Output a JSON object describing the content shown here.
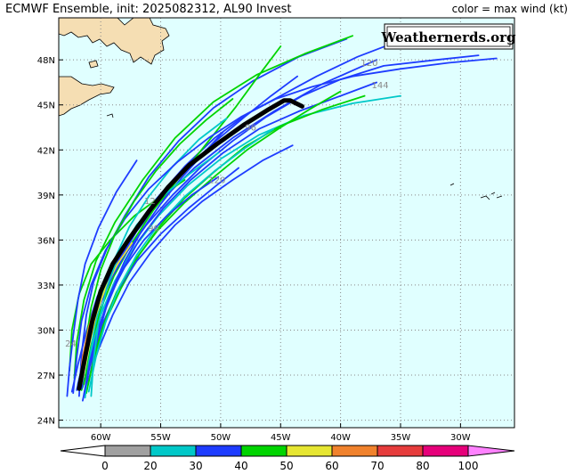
{
  "header": {
    "title": "ECMWF Ensemble, init: 2025082312, AL90 Invest",
    "legend_note": "color = max wind (kt)"
  },
  "watermark": "Weathernerds.org",
  "chart_data": {
    "type": "line",
    "xlim": [
      -63.5,
      -25.5
    ],
    "ylim": [
      23.5,
      50.8
    ],
    "x_ticks": [
      "60W",
      "55W",
      "50W",
      "45W",
      "40W",
      "35W",
      "30W"
    ],
    "x_tick_values": [
      -60,
      -55,
      -50,
      -45,
      -40,
      -35,
      -30
    ],
    "y_ticks": [
      "24N",
      "27N",
      "30N",
      "33N",
      "36N",
      "39N",
      "42N",
      "45N",
      "48N"
    ],
    "y_tick_values": [
      24,
      27,
      30,
      33,
      36,
      39,
      42,
      45,
      48
    ],
    "grid": true,
    "colorbar": {
      "labels": [
        "0",
        "20",
        "30",
        "40",
        "50",
        "60",
        "70",
        "80",
        "100"
      ],
      "colors": [
        "#a0a0a0",
        "#00c8c8",
        "#1e3cff",
        "#00d400",
        "#e6e632",
        "#f0822d",
        "#e63c3c",
        "#e6007a",
        "#ff82ff"
      ]
    },
    "track_labels": [
      {
        "text": "120",
        "lon": -37.6,
        "lat": 47.6
      },
      {
        "text": "144",
        "lon": -36.7,
        "lat": 46.1
      },
      {
        "text": "96",
        "lon": -47.5,
        "lat": 43.3
      },
      {
        "text": "120",
        "lon": -50.3,
        "lat": 39.8
      },
      {
        "text": "12",
        "lon": -55.9,
        "lat": 38.4
      },
      {
        "text": "96",
        "lon": -55.6,
        "lat": 36.6
      },
      {
        "text": "24",
        "lon": -62.5,
        "lat": 28.9
      }
    ],
    "mean_track": {
      "name": "",
      "points": [
        [
          -61.8,
          26.1
        ],
        [
          -61.3,
          28.2
        ],
        [
          -60.7,
          30.6
        ],
        [
          -60.0,
          32.6
        ],
        [
          -59.0,
          34.4
        ],
        [
          -57.7,
          36.0
        ],
        [
          -56.0,
          37.9
        ],
        [
          -54.4,
          39.5
        ],
        [
          -52.6,
          41.0
        ],
        [
          -50.3,
          42.4
        ],
        [
          -48.0,
          43.7
        ],
        [
          -46.0,
          44.7
        ],
        [
          -44.7,
          45.3
        ],
        [
          -44.2,
          45.3
        ],
        [
          -43.2,
          44.9
        ]
      ]
    },
    "members": [
      {
        "color": "#1e3cff",
        "points": [
          [
            -61.8,
            25.6
          ],
          [
            -61.6,
            28.4
          ],
          [
            -61.2,
            31.0
          ],
          [
            -60.6,
            33.2
          ],
          [
            -59.5,
            35.4
          ],
          [
            -58.0,
            37.6
          ],
          [
            -56.0,
            40.2
          ],
          [
            -53.5,
            42.6
          ],
          [
            -50.6,
            44.8
          ],
          [
            -47.3,
            46.6
          ],
          [
            -43.5,
            48.2
          ],
          [
            -39.5,
            49.4
          ]
        ]
      },
      {
        "color": "#00d400",
        "points": [
          [
            -62.2,
            26.8
          ],
          [
            -62.0,
            29.2
          ],
          [
            -61.4,
            32.0
          ],
          [
            -60.4,
            34.6
          ],
          [
            -58.8,
            37.2
          ],
          [
            -56.5,
            40.0
          ],
          [
            -53.8,
            42.8
          ],
          [
            -50.6,
            45.2
          ],
          [
            -47.0,
            47.0
          ],
          [
            -43.0,
            48.4
          ],
          [
            -39.0,
            49.6
          ]
        ]
      },
      {
        "color": "#1e3cff",
        "points": [
          [
            -62.0,
            26.0
          ],
          [
            -61.2,
            28.9
          ],
          [
            -60.3,
            31.6
          ],
          [
            -59.0,
            34.0
          ],
          [
            -57.2,
            36.4
          ],
          [
            -55.0,
            38.6
          ],
          [
            -52.2,
            40.8
          ],
          [
            -49.0,
            42.8
          ],
          [
            -45.5,
            44.6
          ],
          [
            -41.5,
            46.4
          ],
          [
            -37.0,
            48.0
          ]
        ]
      },
      {
        "color": "#1e3cff",
        "points": [
          [
            -62.4,
            25.9
          ],
          [
            -61.9,
            27.7
          ],
          [
            -61.2,
            29.9
          ],
          [
            -60.3,
            32.2
          ],
          [
            -59.0,
            34.4
          ],
          [
            -57.3,
            36.6
          ],
          [
            -55.4,
            38.7
          ],
          [
            -53.0,
            40.9
          ],
          [
            -50.5,
            42.8
          ],
          [
            -47.8,
            44.4
          ],
          [
            -45.0,
            45.6
          ],
          [
            -42.0,
            46.9
          ],
          [
            -38.6,
            48.2
          ],
          [
            -35.0,
            49.3
          ],
          [
            -31.0,
            50.1
          ]
        ]
      },
      {
        "color": "#00c8c8",
        "points": [
          [
            -61.5,
            26.2
          ],
          [
            -60.8,
            28.6
          ],
          [
            -60.0,
            31.0
          ],
          [
            -58.8,
            33.3
          ],
          [
            -57.2,
            35.5
          ],
          [
            -55.2,
            37.6
          ],
          [
            -52.8,
            39.6
          ],
          [
            -50.0,
            41.4
          ],
          [
            -46.8,
            43.0
          ],
          [
            -43.0,
            44.3
          ],
          [
            -39.0,
            45.1
          ],
          [
            -35.0,
            45.6
          ]
        ]
      },
      {
        "color": "#00d400",
        "points": [
          [
            -61.6,
            26.0
          ],
          [
            -60.7,
            28.2
          ],
          [
            -59.6,
            30.6
          ],
          [
            -58.3,
            32.8
          ],
          [
            -56.8,
            35.0
          ],
          [
            -55.0,
            37.0
          ],
          [
            -53.0,
            38.8
          ],
          [
            -50.6,
            40.5
          ],
          [
            -48.0,
            42.2
          ],
          [
            -45.0,
            43.6
          ],
          [
            -41.5,
            44.7
          ],
          [
            -38.0,
            45.6
          ]
        ]
      },
      {
        "color": "#1e3cff",
        "points": [
          [
            -61.2,
            26.3
          ],
          [
            -60.2,
            28.7
          ],
          [
            -59.0,
            31.0
          ],
          [
            -57.6,
            33.2
          ],
          [
            -55.8,
            35.2
          ],
          [
            -53.8,
            37.0
          ],
          [
            -51.5,
            38.6
          ],
          [
            -49.0,
            40.0
          ],
          [
            -46.5,
            41.3
          ],
          [
            -44.0,
            42.3
          ]
        ]
      },
      {
        "color": "#1e3cff",
        "points": [
          [
            -61.9,
            26.4
          ],
          [
            -61.1,
            29.0
          ],
          [
            -60.0,
            31.8
          ],
          [
            -58.6,
            34.4
          ],
          [
            -57.0,
            36.6
          ],
          [
            -55.0,
            38.8
          ],
          [
            -52.8,
            40.8
          ],
          [
            -50.4,
            42.6
          ],
          [
            -48.0,
            44.2
          ],
          [
            -45.8,
            45.6
          ],
          [
            -43.6,
            46.9
          ]
        ]
      },
      {
        "color": "#00d400",
        "points": [
          [
            -62.6,
            27.3
          ],
          [
            -62.4,
            30.0
          ],
          [
            -61.8,
            32.4
          ],
          [
            -60.8,
            34.4
          ],
          [
            -59.2,
            36.0
          ],
          [
            -57.2,
            37.6
          ],
          [
            -55.0,
            38.9
          ],
          [
            -53.0,
            40.0
          ]
        ]
      },
      {
        "color": "#1e3cff",
        "points": [
          [
            -62.8,
            25.6
          ],
          [
            -62.6,
            27.5
          ],
          [
            -62.3,
            29.6
          ],
          [
            -61.9,
            32.0
          ],
          [
            -61.3,
            34.4
          ],
          [
            -60.2,
            36.8
          ],
          [
            -58.7,
            39.2
          ],
          [
            -57.0,
            41.3
          ]
        ]
      },
      {
        "color": "#1e3cff",
        "points": [
          [
            -61.6,
            26.1
          ],
          [
            -60.8,
            28.3
          ],
          [
            -59.8,
            30.5
          ],
          [
            -58.6,
            32.6
          ],
          [
            -57.0,
            34.6
          ],
          [
            -55.0,
            36.4
          ],
          [
            -52.7,
            38.1
          ],
          [
            -50.4,
            39.6
          ],
          [
            -48.5,
            40.8
          ]
        ]
      },
      {
        "color": "#00d400",
        "points": [
          [
            -61.4,
            26.4
          ],
          [
            -60.8,
            29.0
          ],
          [
            -60.0,
            31.4
          ],
          [
            -58.9,
            33.6
          ],
          [
            -57.4,
            35.8
          ],
          [
            -55.6,
            38.0
          ],
          [
            -53.4,
            40.2
          ],
          [
            -51.0,
            42.6
          ],
          [
            -48.8,
            44.8
          ],
          [
            -46.6,
            47.2
          ],
          [
            -45.0,
            48.9
          ]
        ]
      },
      {
        "color": "#1e3cff",
        "points": [
          [
            -61.0,
            26.6
          ],
          [
            -60.4,
            29.0
          ],
          [
            -59.6,
            31.4
          ],
          [
            -58.4,
            33.7
          ],
          [
            -56.8,
            36.0
          ],
          [
            -54.8,
            38.1
          ],
          [
            -52.5,
            40.0
          ],
          [
            -49.8,
            41.8
          ],
          [
            -46.8,
            43.4
          ],
          [
            -43.4,
            44.6
          ],
          [
            -40.0,
            45.6
          ],
          [
            -37.0,
            46.5
          ]
        ]
      },
      {
        "color": "#1e3cff",
        "points": [
          [
            -61.7,
            26.1
          ],
          [
            -61.2,
            28.4
          ],
          [
            -60.5,
            30.7
          ],
          [
            -59.5,
            32.9
          ],
          [
            -58.0,
            35.0
          ],
          [
            -56.2,
            37.0
          ],
          [
            -54.0,
            39.0
          ],
          [
            -51.6,
            40.9
          ],
          [
            -49.0,
            42.6
          ],
          [
            -46.2,
            44.2
          ],
          [
            -43.2,
            45.6
          ],
          [
            -40.0,
            46.7
          ],
          [
            -36.4,
            47.6
          ],
          [
            -32.0,
            48.0
          ],
          [
            -28.5,
            48.3
          ]
        ]
      },
      {
        "color": "#00d400",
        "points": [
          [
            -61.2,
            25.8
          ],
          [
            -60.6,
            28.0
          ],
          [
            -59.8,
            30.3
          ],
          [
            -58.7,
            32.5
          ],
          [
            -57.2,
            34.6
          ],
          [
            -55.3,
            36.6
          ],
          [
            -53.0,
            38.5
          ],
          [
            -50.4,
            40.3
          ],
          [
            -47.8,
            42.0
          ],
          [
            -45.2,
            43.4
          ],
          [
            -42.6,
            44.7
          ],
          [
            -40.0,
            45.9
          ]
        ]
      },
      {
        "color": "#00c8c8",
        "points": [
          [
            -61.0,
            25.9
          ],
          [
            -60.4,
            28.2
          ],
          [
            -59.6,
            30.5
          ],
          [
            -58.5,
            32.8
          ],
          [
            -57.0,
            35.0
          ],
          [
            -55.2,
            37.0
          ],
          [
            -53.0,
            38.9
          ],
          [
            -50.5,
            40.6
          ],
          [
            -48.0,
            42.1
          ],
          [
            -45.6,
            43.4
          ]
        ]
      },
      {
        "color": "#00c8c8",
        "points": [
          [
            -61.3,
            25.5
          ],
          [
            -61.0,
            27.8
          ],
          [
            -60.5,
            30.2
          ],
          [
            -59.8,
            32.6
          ],
          [
            -58.8,
            34.8
          ],
          [
            -57.6,
            36.9
          ],
          [
            -56.0,
            38.9
          ],
          [
            -54.0,
            40.9
          ],
          [
            -51.8,
            42.7
          ],
          [
            -49.5,
            44.1
          ]
        ]
      },
      {
        "color": "#1e3cff",
        "points": [
          [
            -62.3,
            25.8
          ],
          [
            -62.0,
            28.2
          ],
          [
            -61.6,
            30.6
          ],
          [
            -60.8,
            33.0
          ],
          [
            -59.6,
            35.3
          ],
          [
            -58.0,
            37.4
          ],
          [
            -56.0,
            39.4
          ],
          [
            -53.6,
            41.2
          ],
          [
            -51.0,
            42.8
          ],
          [
            -48.3,
            44.2
          ],
          [
            -45.4,
            45.4
          ],
          [
            -42.4,
            46.2
          ],
          [
            -39.0,
            46.9
          ],
          [
            -35.0,
            47.4
          ],
          [
            -31.0,
            47.8
          ],
          [
            -27.0,
            48.1
          ]
        ]
      },
      {
        "color": "#1e3cff",
        "points": [
          [
            -61.4,
            25.7
          ],
          [
            -60.9,
            27.9
          ],
          [
            -60.2,
            30.1
          ],
          [
            -59.3,
            32.2
          ],
          [
            -58.0,
            34.2
          ],
          [
            -56.4,
            36.0
          ],
          [
            -54.5,
            37.6
          ],
          [
            -52.4,
            39.0
          ],
          [
            -50.2,
            40.2
          ]
        ]
      },
      {
        "color": "#00d400",
        "points": [
          [
            -61.7,
            26.3
          ],
          [
            -61.3,
            28.9
          ],
          [
            -60.8,
            31.5
          ],
          [
            -60.0,
            34.0
          ],
          [
            -58.8,
            36.4
          ],
          [
            -57.2,
            38.6
          ],
          [
            -55.4,
            40.6
          ],
          [
            -53.4,
            42.4
          ],
          [
            -51.2,
            44.0
          ],
          [
            -49.0,
            45.4
          ]
        ]
      },
      {
        "color": "#f0822d",
        "points": [
          [
            -61.8,
            26.2
          ],
          [
            -61.5,
            28.2
          ],
          [
            -61.0,
            30.2
          ],
          [
            -60.4,
            31.8
          ],
          [
            -59.6,
            33.2
          ]
        ]
      },
      {
        "color": "#e6e632",
        "points": [
          [
            -61.6,
            26.4
          ],
          [
            -61.0,
            28.8
          ],
          [
            -60.4,
            31.0
          ],
          [
            -59.6,
            32.8
          ],
          [
            -58.6,
            34.4
          ],
          [
            -57.4,
            35.8
          ]
        ]
      },
      {
        "color": "#1e3cff",
        "points": [
          [
            -61.5,
            25.3
          ],
          [
            -60.9,
            27.6
          ],
          [
            -60.1,
            30.0
          ],
          [
            -59.2,
            32.4
          ],
          [
            -58.0,
            34.6
          ],
          [
            -56.6,
            36.6
          ],
          [
            -55.0,
            38.4
          ],
          [
            -53.2,
            40.2
          ],
          [
            -51.4,
            41.8
          ],
          [
            -49.8,
            43.2
          ]
        ]
      },
      {
        "color": "#00c8c8",
        "points": [
          [
            -60.8,
            25.6
          ],
          [
            -60.6,
            28.0
          ],
          [
            -60.2,
            30.4
          ],
          [
            -59.5,
            32.8
          ],
          [
            -58.5,
            35.0
          ],
          [
            -57.0,
            37.0
          ],
          [
            -55.0,
            38.8
          ],
          [
            -52.6,
            40.4
          ],
          [
            -50.2,
            41.8
          ]
        ]
      }
    ]
  }
}
